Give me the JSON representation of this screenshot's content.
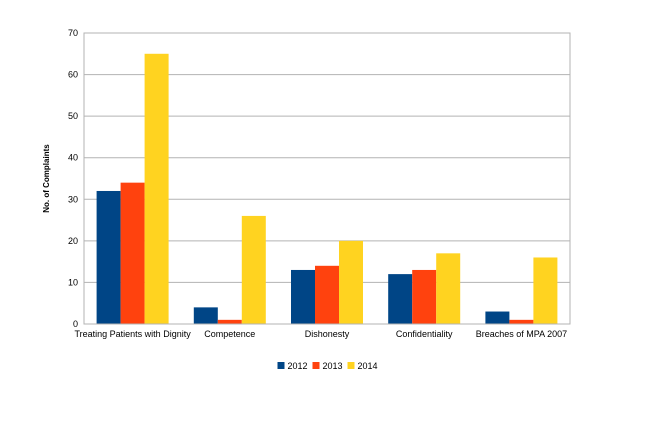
{
  "chart_data": {
    "type": "bar",
    "title": "",
    "xlabel": "",
    "ylabel": "No. of Complaints",
    "ylim": [
      0,
      70
    ],
    "yticks": [
      0,
      10,
      20,
      30,
      40,
      50,
      60,
      70
    ],
    "grid": true,
    "legend_position": "bottom",
    "categories": [
      "Treating Patients with Dignity",
      "Competence",
      "Dishonesty",
      "Confidentiality",
      "Breaches of MPA 2007"
    ],
    "series": [
      {
        "name": "2012",
        "color": "#004586",
        "values": [
          32,
          4,
          13,
          12,
          3
        ]
      },
      {
        "name": "2013",
        "color": "#ff420e",
        "values": [
          34,
          1,
          14,
          13,
          1
        ]
      },
      {
        "name": "2014",
        "color": "#ffd320",
        "values": [
          65,
          26,
          20,
          17,
          16
        ]
      }
    ]
  }
}
